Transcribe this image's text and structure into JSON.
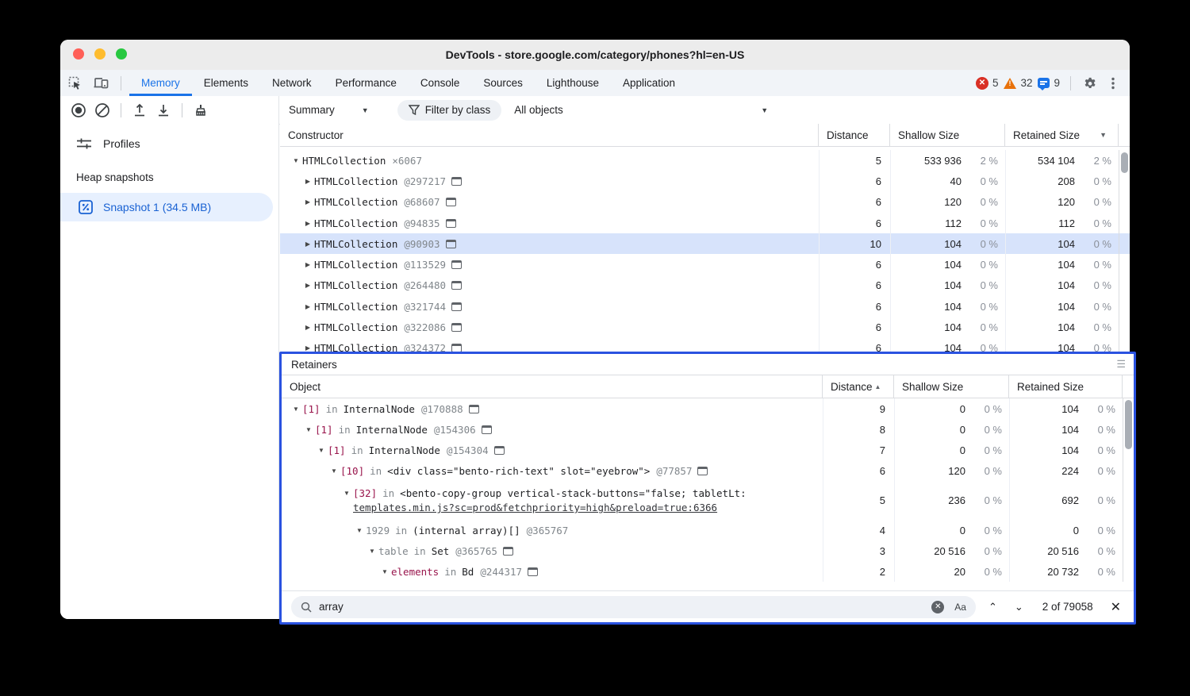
{
  "window": {
    "title": "DevTools - store.google.com/category/phones?hl=en-US"
  },
  "tabs": {
    "items": [
      {
        "label": "Memory",
        "active": true
      },
      {
        "label": "Elements",
        "active": false
      },
      {
        "label": "Network",
        "active": false
      },
      {
        "label": "Performance",
        "active": false
      },
      {
        "label": "Console",
        "active": false
      },
      {
        "label": "Sources",
        "active": false
      },
      {
        "label": "Lighthouse",
        "active": false
      },
      {
        "label": "Application",
        "active": false
      }
    ]
  },
  "badges": {
    "errors": "5",
    "warnings": "32",
    "messages": "9"
  },
  "heap_toolbar": {
    "summary": "Summary",
    "filter": "Filter by class",
    "objects": "All objects"
  },
  "sidebar": {
    "profiles": "Profiles",
    "section": "Heap snapshots",
    "snapshot": "Snapshot 1 (34.5 MB)"
  },
  "colors": {
    "accent": "#1a73e8",
    "selection": "#d7e3fb",
    "retainer_border": "#2a52e0",
    "property_red": "#99154c",
    "error": "#d93025",
    "warning": "#e8710a"
  },
  "constructor_table": {
    "columns": [
      "Constructor",
      "Distance",
      "Shallow Size",
      "Retained Size"
    ],
    "sort": {
      "column": "Retained Size",
      "direction": "desc"
    },
    "rows": [
      {
        "indent": 0,
        "expander": "open",
        "name": "HTMLCollection",
        "suffix": "×6067",
        "icon": false,
        "selected": false,
        "distance": "5",
        "shallow": "533 936",
        "shallow_pct": "2 %",
        "retained": "534 104",
        "retained_pct": "2 %"
      },
      {
        "indent": 1,
        "expander": "closed",
        "name": "HTMLCollection",
        "suffix": "@297217",
        "icon": true,
        "selected": false,
        "distance": "6",
        "shallow": "40",
        "shallow_pct": "0 %",
        "retained": "208",
        "retained_pct": "0 %"
      },
      {
        "indent": 1,
        "expander": "closed",
        "name": "HTMLCollection",
        "suffix": "@68607",
        "icon": true,
        "selected": false,
        "distance": "6",
        "shallow": "120",
        "shallow_pct": "0 %",
        "retained": "120",
        "retained_pct": "0 %"
      },
      {
        "indent": 1,
        "expander": "closed",
        "name": "HTMLCollection",
        "suffix": "@94835",
        "icon": true,
        "selected": false,
        "distance": "6",
        "shallow": "112",
        "shallow_pct": "0 %",
        "retained": "112",
        "retained_pct": "0 %"
      },
      {
        "indent": 1,
        "expander": "closed",
        "name": "HTMLCollection",
        "suffix": "@90903",
        "icon": true,
        "selected": true,
        "distance": "10",
        "shallow": "104",
        "shallow_pct": "0 %",
        "retained": "104",
        "retained_pct": "0 %"
      },
      {
        "indent": 1,
        "expander": "closed",
        "name": "HTMLCollection",
        "suffix": "@113529",
        "icon": true,
        "selected": false,
        "distance": "6",
        "shallow": "104",
        "shallow_pct": "0 %",
        "retained": "104",
        "retained_pct": "0 %"
      },
      {
        "indent": 1,
        "expander": "closed",
        "name": "HTMLCollection",
        "suffix": "@264480",
        "icon": true,
        "selected": false,
        "distance": "6",
        "shallow": "104",
        "shallow_pct": "0 %",
        "retained": "104",
        "retained_pct": "0 %"
      },
      {
        "indent": 1,
        "expander": "closed",
        "name": "HTMLCollection",
        "suffix": "@321744",
        "icon": true,
        "selected": false,
        "distance": "6",
        "shallow": "104",
        "shallow_pct": "0 %",
        "retained": "104",
        "retained_pct": "0 %"
      },
      {
        "indent": 1,
        "expander": "closed",
        "name": "HTMLCollection",
        "suffix": "@322086",
        "icon": true,
        "selected": false,
        "distance": "6",
        "shallow": "104",
        "shallow_pct": "0 %",
        "retained": "104",
        "retained_pct": "0 %"
      },
      {
        "indent": 1,
        "expander": "closed",
        "name": "HTMLCollection",
        "suffix": "@324372",
        "icon": true,
        "selected": false,
        "distance": "6",
        "shallow": "104",
        "shallow_pct": "0 %",
        "retained": "104",
        "retained_pct": "0 %"
      }
    ]
  },
  "retainers": {
    "title": "Retainers",
    "columns": [
      "Object",
      "Distance",
      "Shallow Size",
      "Retained Size"
    ],
    "sort": {
      "column": "Distance",
      "direction": "asc"
    },
    "rows": [
      {
        "indent": 0,
        "expander": "open",
        "prop": "[1]",
        "prop_style": "red",
        "in_word": "in",
        "target": "InternalNode",
        "id": "@170888",
        "icon": true,
        "link": "",
        "distance": "9",
        "shallow": "0",
        "shallow_pct": "0 %",
        "retained": "104",
        "retained_pct": "0 %"
      },
      {
        "indent": 1,
        "expander": "open",
        "prop": "[1]",
        "prop_style": "red",
        "in_word": "in",
        "target": "InternalNode",
        "id": "@154306",
        "icon": true,
        "link": "",
        "distance": "8",
        "shallow": "0",
        "shallow_pct": "0 %",
        "retained": "104",
        "retained_pct": "0 %"
      },
      {
        "indent": 2,
        "expander": "open",
        "prop": "[1]",
        "prop_style": "red",
        "in_word": "in",
        "target": "InternalNode",
        "id": "@154304",
        "icon": true,
        "link": "",
        "distance": "7",
        "shallow": "0",
        "shallow_pct": "0 %",
        "retained": "104",
        "retained_pct": "0 %"
      },
      {
        "indent": 3,
        "expander": "open",
        "prop": "[10]",
        "prop_style": "red",
        "in_word": "in",
        "target": "<div class=\"bento-rich-text\" slot=\"eyebrow\">",
        "id": "@77857",
        "icon": true,
        "link": "",
        "distance": "6",
        "shallow": "120",
        "shallow_pct": "0 %",
        "retained": "224",
        "retained_pct": "0 %"
      },
      {
        "indent": 4,
        "expander": "open",
        "prop": "[32]",
        "prop_style": "red",
        "in_word": "in",
        "target": "<bento-copy-group vertical-stack-buttons=\"false; tabletLt:",
        "id": "",
        "icon": false,
        "link": "templates.min.js?sc=prod&fetchpriority=high&preload=true:6366",
        "distance": "5",
        "shallow": "236",
        "shallow_pct": "0 %",
        "retained": "692",
        "retained_pct": "0 %"
      },
      {
        "indent": 5,
        "expander": "open",
        "prop": "1929",
        "prop_style": "gray",
        "in_word": "in",
        "target": "(internal array)[]",
        "id": "@365767",
        "icon": false,
        "link": "",
        "distance": "4",
        "shallow": "0",
        "shallow_pct": "0 %",
        "retained": "0",
        "retained_pct": "0 %"
      },
      {
        "indent": 6,
        "expander": "open",
        "prop": "table",
        "prop_style": "gray",
        "in_word": "in",
        "target": "Set",
        "id": "@365765",
        "icon": true,
        "link": "",
        "distance": "3",
        "shallow": "20 516",
        "shallow_pct": "0 %",
        "retained": "20 516",
        "retained_pct": "0 %"
      },
      {
        "indent": 7,
        "expander": "open",
        "prop": "elements",
        "prop_style": "red",
        "in_word": "in",
        "target": "Bd",
        "id": "@244317",
        "icon": true,
        "link": "",
        "distance": "2",
        "shallow": "20",
        "shallow_pct": "0 %",
        "retained": "20 732",
        "retained_pct": "0 %"
      }
    ]
  },
  "search": {
    "query": "array",
    "match_case_label": "Aa",
    "results": "2 of 79058"
  }
}
